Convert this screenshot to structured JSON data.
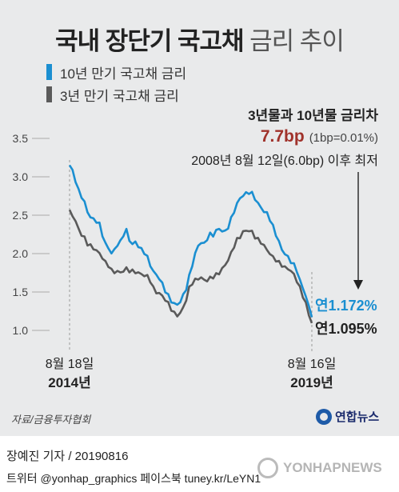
{
  "title": {
    "bold": "국내 장단기 국고채",
    "light": "금리 추이"
  },
  "note": {
    "line1": "3년물과 10년물 금리차",
    "line2_value": "7.7bp",
    "line2_unit": "(1bp=0.01%)",
    "line3": "2008년 8월 12일(6.0bp) 이후 최저"
  },
  "source": "자료/금융투자협회",
  "logo_text": "연합뉴스",
  "credit": "장예진 기자 / 20190816",
  "social": "트위터 @yonhap_graphics  페이스북 tuney.kr/LeYN1",
  "watermark": "YONHAPNEWS",
  "colors": {
    "ten_year": "#1b8fd1",
    "three_year": "#5a5a5a",
    "background": "#e9eaeb",
    "highlight": "#a0322b"
  },
  "chart_data": {
    "type": "line",
    "x_labels": {
      "start": {
        "date": "8월 18일",
        "year": "2014년"
      },
      "end": {
        "date": "8월 16일",
        "year": "2019년"
      }
    },
    "ylim": [
      1.0,
      3.5
    ],
    "yticks": [
      "3.5",
      "3.0",
      "2.5",
      "2.0",
      "1.5",
      "1.0"
    ],
    "series": [
      {
        "name": "10년 만기 국고채 금리",
        "color": "#1b8fd1",
        "end_label": "연1.172%",
        "values": [
          3.15,
          3.08,
          2.95,
          2.82,
          2.75,
          2.66,
          2.55,
          2.47,
          2.45,
          2.42,
          2.38,
          2.25,
          2.12,
          2.08,
          2.0,
          2.05,
          2.12,
          2.15,
          2.25,
          2.3,
          2.18,
          2.12,
          2.15,
          2.1,
          2.05,
          2.02,
          1.95,
          1.85,
          1.77,
          1.72,
          1.68,
          1.6,
          1.52,
          1.45,
          1.38,
          1.35,
          1.33,
          1.38,
          1.45,
          1.55,
          1.7,
          1.85,
          2.0,
          2.1,
          2.15,
          2.12,
          2.2,
          2.25,
          2.24,
          2.3,
          2.32,
          2.3,
          2.28,
          2.35,
          2.45,
          2.55,
          2.65,
          2.72,
          2.76,
          2.78,
          2.8,
          2.78,
          2.72,
          2.65,
          2.6,
          2.55,
          2.52,
          2.45,
          2.35,
          2.25,
          2.15,
          2.05,
          2.0,
          1.95,
          1.9,
          1.85,
          1.78,
          1.65,
          1.55,
          1.45,
          1.3,
          1.172
        ]
      },
      {
        "name": "3년 만기 국고채 금리",
        "color": "#5a5a5a",
        "end_label": "연1.095%",
        "values": [
          2.57,
          2.5,
          2.42,
          2.32,
          2.25,
          2.2,
          2.13,
          2.1,
          2.07,
          2.04,
          2.0,
          1.95,
          1.88,
          1.85,
          1.78,
          1.76,
          1.77,
          1.75,
          1.78,
          1.8,
          1.78,
          1.77,
          1.76,
          1.75,
          1.73,
          1.72,
          1.7,
          1.65,
          1.55,
          1.5,
          1.48,
          1.45,
          1.4,
          1.35,
          1.28,
          1.22,
          1.2,
          1.22,
          1.3,
          1.4,
          1.55,
          1.62,
          1.65,
          1.68,
          1.68,
          1.66,
          1.65,
          1.68,
          1.7,
          1.72,
          1.75,
          1.8,
          1.85,
          1.92,
          2.0,
          2.1,
          2.18,
          2.22,
          2.28,
          2.3,
          2.3,
          2.28,
          2.22,
          2.18,
          2.15,
          2.1,
          2.05,
          2.0,
          1.95,
          1.92,
          1.88,
          1.85,
          1.82,
          1.8,
          1.78,
          1.72,
          1.65,
          1.55,
          1.45,
          1.35,
          1.2,
          1.095
        ]
      }
    ]
  }
}
